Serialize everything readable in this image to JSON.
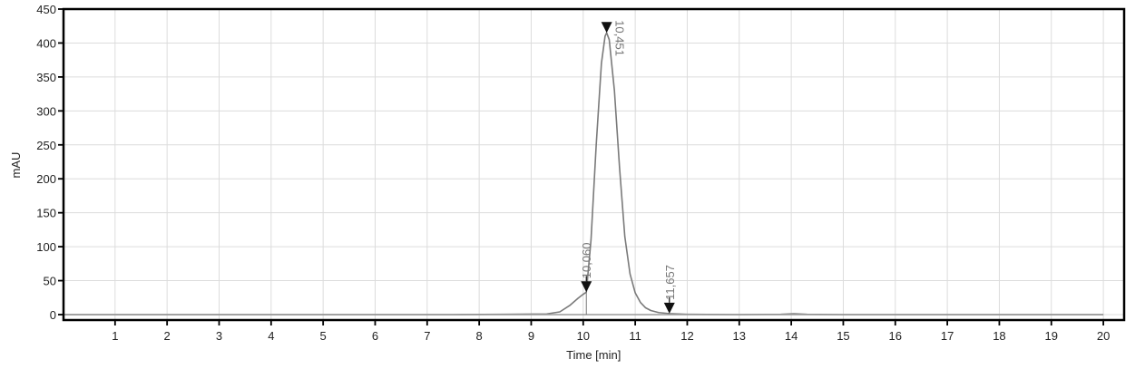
{
  "chart_data": {
    "type": "line",
    "title": "",
    "xlabel": "Time [min]",
    "ylabel": "mAU",
    "xlim": [
      0,
      20.4
    ],
    "ylim": [
      -5,
      450
    ],
    "x_ticks": [
      1,
      2,
      3,
      4,
      5,
      6,
      7,
      8,
      9,
      10,
      11,
      12,
      13,
      14,
      15,
      16,
      17,
      18,
      19,
      20
    ],
    "y_ticks": [
      0,
      50,
      100,
      150,
      200,
      250,
      300,
      350,
      400,
      450
    ],
    "grid": true,
    "legend": null,
    "series": [
      {
        "name": "chromatogram",
        "color": "#7a7a7a",
        "x": [
          0,
          7.5,
          8.5,
          9.3,
          9.55,
          9.75,
          9.9,
          10.0,
          10.06,
          10.15,
          10.25,
          10.35,
          10.42,
          10.451,
          10.5,
          10.6,
          10.7,
          10.8,
          10.9,
          11.0,
          11.1,
          11.2,
          11.3,
          11.45,
          11.657,
          12.0,
          13.0,
          13.8,
          14.05,
          14.3,
          15.0,
          20.0
        ],
        "y": [
          0,
          0,
          0.5,
          1,
          4,
          14,
          24,
          30,
          33,
          110,
          250,
          370,
          410,
          415,
          405,
          330,
          215,
          115,
          60,
          32,
          18,
          10,
          6,
          3,
          1.5,
          0.5,
          0,
          0.5,
          1.2,
          0.4,
          0,
          0
        ]
      }
    ],
    "peaks": [
      {
        "label": "10,060",
        "time": 10.06,
        "marker_y": 33,
        "type": "start-marker"
      },
      {
        "label": "10,451",
        "time": 10.451,
        "marker_y": 415,
        "type": "apex-marker"
      },
      {
        "label": "11,657",
        "time": 11.657,
        "marker_y": 1.5,
        "type": "end-marker"
      }
    ],
    "annotations": [
      "10,060",
      "10,451",
      "11,657"
    ]
  },
  "axis": {
    "x_title": "Time [min]",
    "y_title": "mAU"
  },
  "colors": {
    "trace": "#7a7a7a",
    "grid": "#dcdcdc",
    "frame": "#000000",
    "marker": "#111111",
    "label": "#777777"
  }
}
